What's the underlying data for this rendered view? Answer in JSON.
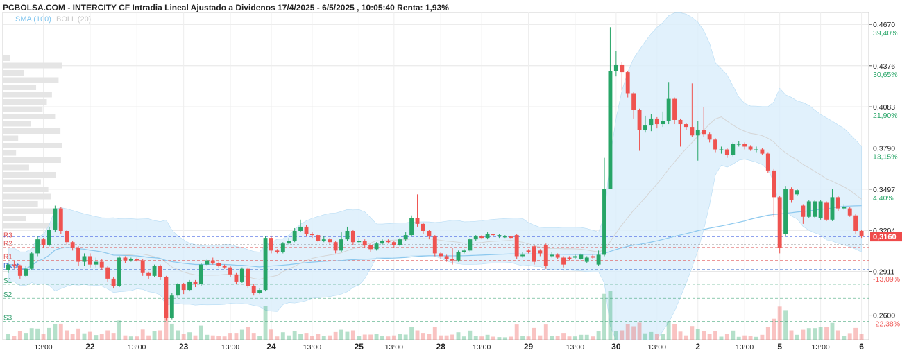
{
  "header": {
    "title": "PCBOLSA.COM - INTERCITY CF Intradia Lineal Ajustado a Dividenos 17/4/2025 - 6/5/2025 , 10:05:40 Renta: 1,93%",
    "legend_sma": "SMA (100)",
    "legend_boll": "BOLL (20)"
  },
  "colors": {
    "up": "#27a567",
    "down": "#ef5350",
    "sma": "#8cc8ee",
    "band_fill": "#d9eefb",
    "price_tag": "#ef4b4b",
    "resistance": "#e05555",
    "support": "#2e9c6b",
    "pivot": "#3366cc"
  },
  "chart_data": {
    "type": "candlestick",
    "x_ticks": [
      "13:00",
      "22",
      "13:00",
      "23",
      "13:00",
      "24",
      "13:00",
      "25",
      "13:00",
      "28",
      "13:00",
      "29",
      "13:00",
      "30",
      "13:00",
      "2",
      "13:00",
      "5",
      "13:00",
      "6"
    ],
    "y_ticks": [
      {
        "value": 0.467,
        "label": "0,4670",
        "pct": "39,40%"
      },
      {
        "value": 0.4376,
        "label": "0,4376",
        "pct": "30,65%"
      },
      {
        "value": 0.4083,
        "label": "0,4083",
        "pct": "21,90%"
      },
      {
        "value": 0.379,
        "label": "0,3790",
        "pct": "13,15%"
      },
      {
        "value": 0.3497,
        "label": "0,3497",
        "pct": "4,40%"
      },
      {
        "value": 0.3204,
        "label": "0,3204",
        "pct": ""
      },
      {
        "value": 0.2911,
        "label": "0,2911",
        "pct": ""
      },
      {
        "value": 0.26,
        "label": "0,2600",
        "pct": "-22,38%"
      }
    ],
    "ylim": [
      0.2425,
      0.4755
    ],
    "last_price": {
      "value": 0.316,
      "label": "0,3160"
    },
    "pct_neg": {
      "value": 0.286,
      "label": "-13,09%"
    },
    "levels": [
      {
        "name": "R3",
        "value": 0.3143,
        "kind": "resistance"
      },
      {
        "name": "R2",
        "value": 0.3083,
        "kind": "resistance"
      },
      {
        "name": "R1",
        "value": 0.299,
        "kind": "resistance"
      },
      {
        "name": "Pivot",
        "value": 0.2925,
        "kind": "pivot"
      },
      {
        "name": "S1",
        "value": 0.282,
        "kind": "support"
      },
      {
        "name": "S2",
        "value": 0.272,
        "kind": "support"
      },
      {
        "name": "S3",
        "value": 0.2555,
        "kind": "support"
      }
    ],
    "candles": [
      [
        0.292,
        0.296,
        0.297,
        0.29
      ],
      [
        0.296,
        0.2955,
        0.299,
        0.293
      ],
      [
        0.2955,
        0.288,
        0.296,
        0.286
      ],
      [
        0.288,
        0.293,
        0.295,
        0.287
      ],
      [
        0.293,
        0.304,
        0.305,
        0.292
      ],
      [
        0.304,
        0.314,
        0.316,
        0.302
      ],
      [
        0.314,
        0.31,
        0.315,
        0.308
      ],
      [
        0.31,
        0.321,
        0.323,
        0.309
      ],
      [
        0.321,
        0.336,
        0.338,
        0.319
      ],
      [
        0.336,
        0.32,
        0.337,
        0.318
      ],
      [
        0.32,
        0.312,
        0.321,
        0.31
      ],
      [
        0.312,
        0.308,
        0.313,
        0.306
      ],
      [
        0.308,
        0.298,
        0.309,
        0.295
      ],
      [
        0.298,
        0.302,
        0.304,
        0.295
      ],
      [
        0.302,
        0.296,
        0.304,
        0.294
      ],
      [
        0.296,
        0.298,
        0.301,
        0.294
      ],
      [
        0.298,
        0.294,
        0.3,
        0.292
      ],
      [
        0.294,
        0.286,
        0.295,
        0.284
      ],
      [
        0.286,
        0.281,
        0.287,
        0.279
      ],
      [
        0.281,
        0.301,
        0.302,
        0.28
      ],
      [
        0.301,
        0.299,
        0.302,
        0.297
      ],
      [
        0.299,
        0.3,
        0.301,
        0.298
      ],
      [
        0.3,
        0.299,
        0.301,
        0.298
      ],
      [
        0.299,
        0.29,
        0.3,
        0.288
      ],
      [
        0.29,
        0.288,
        0.291,
        0.286
      ],
      [
        0.288,
        0.295,
        0.296,
        0.287
      ],
      [
        0.295,
        0.287,
        0.296,
        0.285
      ],
      [
        0.287,
        0.258,
        0.288,
        0.256
      ],
      [
        0.258,
        0.274,
        0.276,
        0.257
      ],
      [
        0.274,
        0.282,
        0.283,
        0.272
      ],
      [
        0.282,
        0.278,
        0.283,
        0.275
      ],
      [
        0.278,
        0.284,
        0.285,
        0.277
      ],
      [
        0.284,
        0.282,
        0.285,
        0.28
      ],
      [
        0.282,
        0.296,
        0.297,
        0.281
      ],
      [
        0.296,
        0.299,
        0.3,
        0.295
      ],
      [
        0.299,
        0.297,
        0.301,
        0.296
      ],
      [
        0.297,
        0.295,
        0.298,
        0.294
      ],
      [
        0.295,
        0.294,
        0.296,
        0.293
      ],
      [
        0.294,
        0.289,
        0.295,
        0.287
      ],
      [
        0.289,
        0.284,
        0.29,
        0.282
      ],
      [
        0.284,
        0.293,
        0.294,
        0.283
      ],
      [
        0.293,
        0.281,
        0.294,
        0.279
      ],
      [
        0.281,
        0.276,
        0.282,
        0.274
      ],
      [
        0.276,
        0.278,
        0.279,
        0.275
      ],
      [
        0.278,
        0.315,
        0.316,
        0.277
      ],
      [
        0.315,
        0.306,
        0.316,
        0.304
      ],
      [
        0.306,
        0.305,
        0.307,
        0.304
      ],
      [
        0.305,
        0.311,
        0.312,
        0.304
      ],
      [
        0.311,
        0.313,
        0.315,
        0.31
      ],
      [
        0.313,
        0.32,
        0.322,
        0.312
      ],
      [
        0.32,
        0.323,
        0.328,
        0.319
      ],
      [
        0.323,
        0.318,
        0.324,
        0.316
      ],
      [
        0.318,
        0.317,
        0.319,
        0.315
      ],
      [
        0.317,
        0.313,
        0.318,
        0.312
      ],
      [
        0.313,
        0.314,
        0.316,
        0.312
      ],
      [
        0.314,
        0.312,
        0.315,
        0.31
      ],
      [
        0.312,
        0.306,
        0.313,
        0.304
      ],
      [
        0.306,
        0.314,
        0.319,
        0.305
      ],
      [
        0.314,
        0.32,
        0.323,
        0.313
      ],
      [
        0.32,
        0.312,
        0.321,
        0.31
      ],
      [
        0.312,
        0.313,
        0.315,
        0.311
      ],
      [
        0.313,
        0.31,
        0.314,
        0.308
      ],
      [
        0.31,
        0.307,
        0.311,
        0.305
      ],
      [
        0.307,
        0.311,
        0.312,
        0.306
      ],
      [
        0.311,
        0.313,
        0.314,
        0.31
      ],
      [
        0.313,
        0.312,
        0.314,
        0.311
      ],
      [
        0.312,
        0.31,
        0.313,
        0.308
      ],
      [
        0.31,
        0.314,
        0.315,
        0.309
      ],
      [
        0.314,
        0.317,
        0.319,
        0.313
      ],
      [
        0.317,
        0.329,
        0.331,
        0.316
      ],
      [
        0.329,
        0.325,
        0.346,
        0.323
      ],
      [
        0.325,
        0.32,
        0.326,
        0.318
      ],
      [
        0.32,
        0.316,
        0.321,
        0.314
      ],
      [
        0.316,
        0.304,
        0.317,
        0.302
      ],
      [
        0.304,
        0.302,
        0.305,
        0.3
      ],
      [
        0.302,
        0.3,
        0.303,
        0.298
      ],
      [
        0.3,
        0.299,
        0.308,
        0.296
      ],
      [
        0.299,
        0.305,
        0.306,
        0.298
      ],
      [
        0.305,
        0.306,
        0.307,
        0.304
      ],
      [
        0.306,
        0.314,
        0.315,
        0.305
      ],
      [
        0.314,
        0.316,
        0.317,
        0.313
      ],
      [
        0.316,
        0.315,
        0.317,
        0.314
      ],
      [
        0.315,
        0.318,
        0.319,
        0.314
      ],
      [
        0.318,
        0.317,
        0.318,
        0.316
      ],
      [
        0.317,
        0.317,
        0.318,
        0.315
      ],
      [
        0.316,
        0.316,
        0.317,
        0.315
      ],
      [
        0.316,
        0.315,
        0.316,
        0.314
      ],
      [
        0.317,
        0.302,
        0.318,
        0.3
      ],
      [
        0.302,
        0.303,
        0.305,
        0.301
      ],
      [
        0.306,
        0.305,
        0.307,
        0.304
      ],
      [
        0.309,
        0.298,
        0.31,
        0.296
      ],
      [
        0.306,
        0.304,
        0.307,
        0.302
      ],
      [
        0.31,
        0.295,
        0.311,
        0.293
      ],
      [
        0.302,
        0.303,
        0.305,
        0.301
      ],
      [
        0.303,
        0.301,
        0.304,
        0.3
      ],
      [
        0.301,
        0.296,
        0.302,
        0.294
      ],
      [
        0.301,
        0.3,
        0.302,
        0.299
      ],
      [
        0.301,
        0.302,
        0.303,
        0.3
      ],
      [
        0.3,
        0.303,
        0.304,
        0.299
      ],
      [
        0.298,
        0.301,
        0.302,
        0.297
      ],
      [
        0.302,
        0.301,
        0.303,
        0.3
      ],
      [
        0.296,
        0.303,
        0.306,
        0.295
      ],
      [
        0.303,
        0.35,
        0.372,
        0.302
      ],
      [
        0.35,
        0.434,
        0.465,
        0.41
      ],
      [
        0.434,
        0.438,
        0.448,
        0.43
      ],
      [
        0.438,
        0.433,
        0.44,
        0.42
      ],
      [
        0.433,
        0.418,
        0.434,
        0.415
      ],
      [
        0.418,
        0.406,
        0.419,
        0.4
      ],
      [
        0.406,
        0.392,
        0.407,
        0.377
      ],
      [
        0.392,
        0.395,
        0.402,
        0.39
      ],
      [
        0.395,
        0.4,
        0.403,
        0.391
      ],
      [
        0.4,
        0.396,
        0.401,
        0.393
      ],
      [
        0.396,
        0.398,
        0.405,
        0.394
      ],
      [
        0.398,
        0.414,
        0.426,
        0.396
      ],
      [
        0.414,
        0.399,
        0.415,
        0.396
      ],
      [
        0.399,
        0.396,
        0.4,
        0.38
      ],
      [
        0.396,
        0.394,
        0.397,
        0.392
      ],
      [
        0.394,
        0.388,
        0.425,
        0.387
      ],
      [
        0.388,
        0.392,
        0.398,
        0.37
      ],
      [
        0.392,
        0.389,
        0.408,
        0.387
      ],
      [
        0.389,
        0.385,
        0.39,
        0.383
      ],
      [
        0.385,
        0.378,
        0.386,
        0.376
      ],
      [
        0.378,
        0.378,
        0.38,
        0.375
      ],
      [
        0.378,
        0.374,
        0.379,
        0.372
      ],
      [
        0.374,
        0.382,
        0.383,
        0.373
      ],
      [
        0.382,
        0.382,
        0.384,
        0.38
      ],
      [
        0.382,
        0.38,
        0.383,
        0.378
      ],
      [
        0.38,
        0.378,
        0.381,
        0.377
      ],
      [
        0.378,
        0.378,
        0.38,
        0.376
      ],
      [
        0.378,
        0.375,
        0.379,
        0.374
      ],
      [
        0.375,
        0.363,
        0.376,
        0.361
      ],
      [
        0.363,
        0.344,
        0.364,
        0.33
      ],
      [
        0.344,
        0.308,
        0.345,
        0.304
      ],
      [
        0.318,
        0.35,
        0.352,
        0.316
      ],
      [
        0.35,
        0.342,
        0.351,
        0.34
      ],
      [
        0.346,
        0.349,
        0.35,
        0.345
      ],
      [
        0.338,
        0.33,
        0.339,
        0.325
      ],
      [
        0.33,
        0.341,
        0.342,
        0.329
      ],
      [
        0.33,
        0.341,
        0.342,
        0.329
      ],
      [
        0.329,
        0.341,
        0.342,
        0.328
      ],
      [
        0.34,
        0.328,
        0.341,
        0.327
      ],
      [
        0.328,
        0.344,
        0.35,
        0.327
      ],
      [
        0.344,
        0.336,
        0.345,
        0.334
      ],
      [
        0.336,
        0.337,
        0.339,
        0.335
      ],
      [
        0.336,
        0.331,
        0.337,
        0.33
      ],
      [
        0.331,
        0.32,
        0.332,
        0.318
      ],
      [
        0.32,
        0.316,
        0.321,
        0.315
      ]
    ],
    "x_tick_index": [
      6,
      14,
      22,
      30,
      38,
      45,
      52,
      60,
      66,
      74,
      81,
      89,
      97,
      104,
      111,
      118,
      126,
      132,
      139,
      146
    ]
  }
}
